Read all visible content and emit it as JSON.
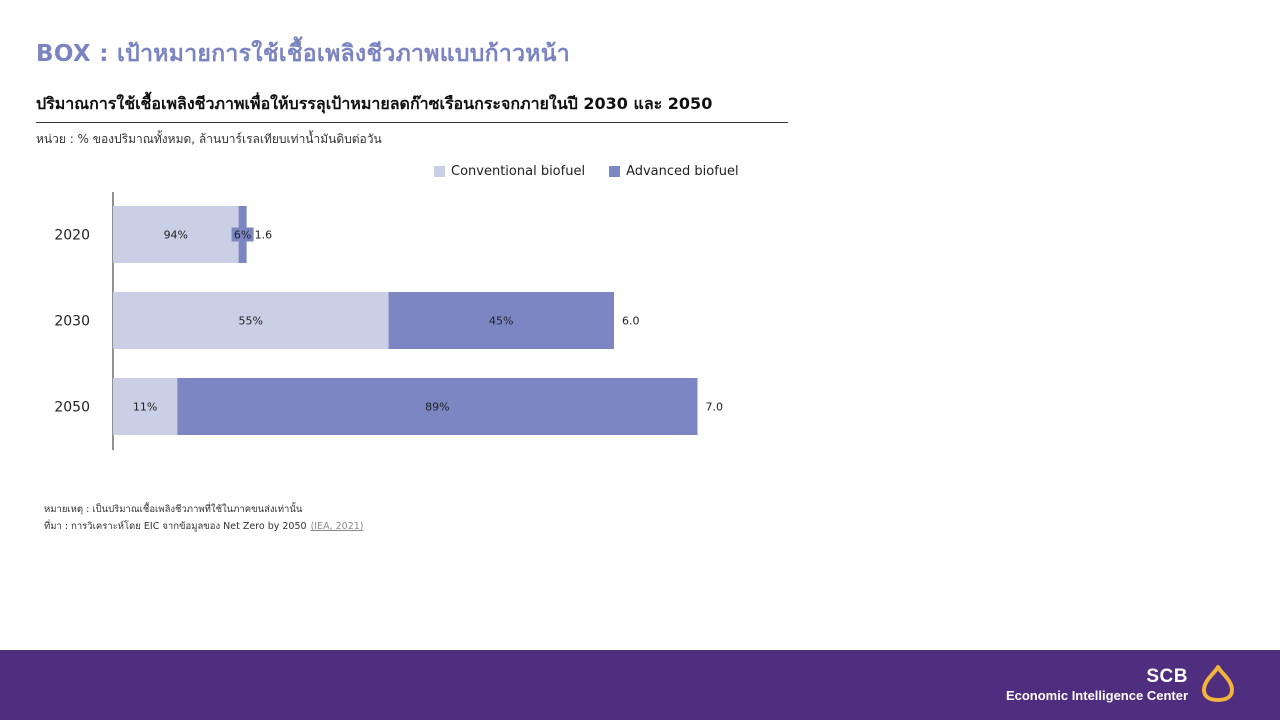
{
  "header": {
    "box_title": "BOX : เป้าหมายการใช้เชื้อเพลิงชีวภาพแบบก้าวหน้า"
  },
  "notes": {
    "remark": "หมายเหตุ : เป็นปริมาณเชื้อเพลิงชีวภาพที่ใช้ในภาคขนส่งเท่านั้น",
    "source": "ที่มา : การวิเคราะห์โดย EIC จากข้อมูลของ Net Zero by 2050",
    "source_link": "(IEA, 2021)"
  },
  "footer": {
    "brand": "SCB",
    "center": "Economic Intelligence Center",
    "logo_icon": "scb-house-icon"
  },
  "colors": {
    "conventional": "#cbcfe6",
    "advanced": "#7b86c2",
    "accent_title": "#7b84c0",
    "footer_bg": "#4f2d7f"
  },
  "chart_data": {
    "type": "bar",
    "orientation": "horizontal",
    "stacked": true,
    "title": "ปริมาณการใช้เชื้อเพลิงชีวภาพเพื่อให้บรรลุเป้าหมายลดก๊าซเรือนกระจกภายในปี 2030 และ 2050",
    "unit": "หน่วย : % ของปริมาณทั้งหมด, ล้านบาร์เรลเทียบเท่าน้ำมันดิบต่อวัน",
    "legend_position": "top-right",
    "grid": false,
    "categories": [
      "2020",
      "2030",
      "2050"
    ],
    "totals": [
      1.6,
      6.0,
      7.0
    ],
    "total_labels": [
      "1.6",
      "6.0",
      "7.0"
    ],
    "series": [
      {
        "name": "Conventional biofuel",
        "share_pct": [
          94,
          55,
          11
        ],
        "labels": [
          "94%",
          "55%",
          "11%"
        ]
      },
      {
        "name": "Advanced biofuel",
        "share_pct": [
          6,
          45,
          89
        ],
        "labels": [
          "6%",
          "45%",
          "89%"
        ]
      }
    ],
    "xlim": [
      0,
      7.5
    ]
  }
}
